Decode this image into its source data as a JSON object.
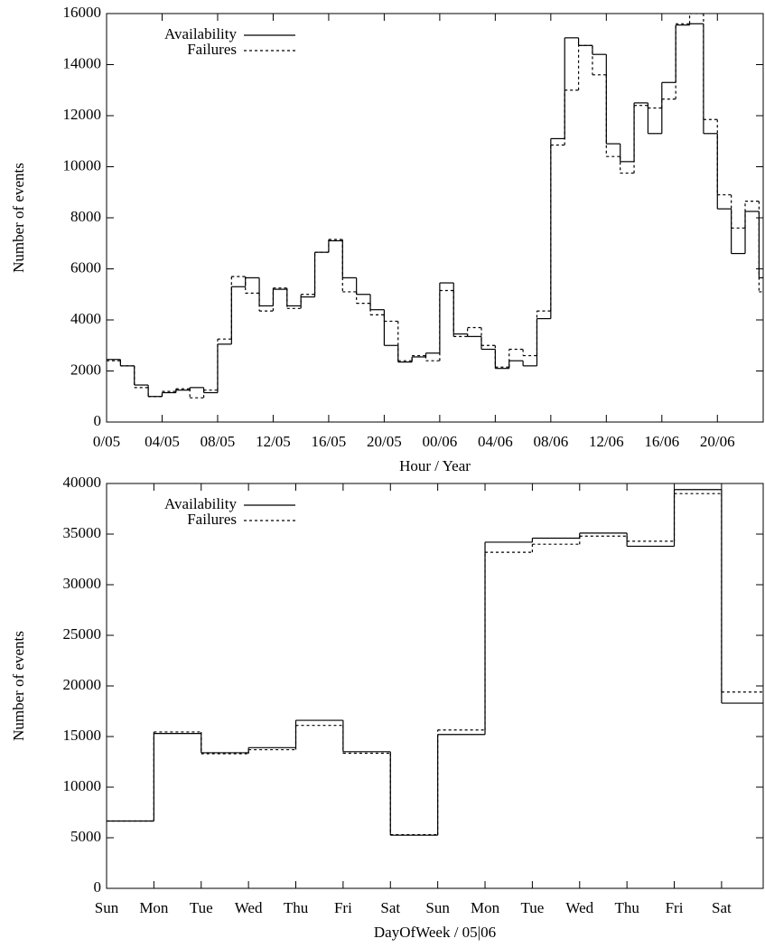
{
  "chart_data": [
    {
      "type": "step",
      "xlabel": "Hour / Year",
      "ylabel": "Number of events",
      "legend": "top-left",
      "grid": false,
      "x": [
        0,
        1,
        2,
        3,
        4,
        5,
        6,
        7,
        8,
        9,
        10,
        11,
        12,
        13,
        14,
        15,
        16,
        17,
        18,
        19,
        20,
        21,
        22,
        23,
        24,
        25,
        26,
        27,
        28,
        29,
        30,
        31,
        32,
        33,
        34,
        35,
        36,
        37,
        38,
        39,
        40,
        41,
        42,
        43,
        44,
        45,
        46,
        47
      ],
      "xlim": [
        0,
        47.3
      ],
      "xticks": [
        {
          "value": 0,
          "label": "0/05"
        },
        {
          "value": 4,
          "label": "04/05"
        },
        {
          "value": 8,
          "label": "08/05"
        },
        {
          "value": 12,
          "label": "12/05"
        },
        {
          "value": 16,
          "label": "16/05"
        },
        {
          "value": 20,
          "label": "20/05"
        },
        {
          "value": 24,
          "label": "00/06"
        },
        {
          "value": 28,
          "label": "04/06"
        },
        {
          "value": 32,
          "label": "08/06"
        },
        {
          "value": 36,
          "label": "12/06"
        },
        {
          "value": 40,
          "label": "16/06"
        },
        {
          "value": 44,
          "label": "20/06"
        }
      ],
      "ylim": [
        0,
        16000
      ],
      "yticks": [
        0,
        2000,
        4000,
        6000,
        8000,
        10000,
        12000,
        14000,
        16000
      ],
      "series": [
        {
          "name": "Availability",
          "color": "#000000",
          "dash": "solid",
          "values": [
            2450,
            2200,
            1450,
            1000,
            1150,
            1250,
            1350,
            1150,
            3050,
            5300,
            5650,
            4550,
            5200,
            4550,
            4900,
            6650,
            7100,
            5650,
            5000,
            4400,
            3000,
            2350,
            2550,
            2700,
            5450,
            3450,
            3350,
            2850,
            2100,
            2400,
            2200,
            4050,
            11100,
            15050,
            14750,
            14400,
            10900,
            10200,
            12500,
            11300,
            13300,
            15550,
            15600,
            11300,
            8350,
            6600,
            8250,
            5650
          ]
        },
        {
          "name": "Failures",
          "color": "#000000",
          "dash": "dashed",
          "values": [
            2400,
            2200,
            1350,
            1000,
            1200,
            1300,
            950,
            1250,
            3250,
            5700,
            5050,
            4350,
            5250,
            4450,
            5000,
            6650,
            7150,
            5100,
            4650,
            4200,
            3950,
            2400,
            2600,
            2400,
            5150,
            3350,
            3700,
            3000,
            2150,
            2850,
            2600,
            4350,
            10850,
            13000,
            14750,
            13600,
            10400,
            9750,
            12400,
            12300,
            12650,
            15600,
            16000,
            11850,
            8900,
            7600,
            8650,
            5100
          ]
        }
      ]
    },
    {
      "type": "step",
      "xlabel": "DayOfWeek / 05|06",
      "ylabel": "Number of events",
      "legend": "top-left",
      "grid": false,
      "x": [
        0,
        1,
        2,
        3,
        4,
        5,
        6,
        7,
        8,
        9,
        10,
        11,
        12,
        13
      ],
      "xlim": [
        0,
        13.88
      ],
      "xticks": [
        {
          "value": 0,
          "label": "Sun"
        },
        {
          "value": 1,
          "label": "Mon"
        },
        {
          "value": 2,
          "label": "Tue"
        },
        {
          "value": 3,
          "label": "Wed"
        },
        {
          "value": 4,
          "label": "Thu"
        },
        {
          "value": 5,
          "label": "Fri"
        },
        {
          "value": 6,
          "label": "Sat"
        },
        {
          "value": 7,
          "label": "Sun"
        },
        {
          "value": 8,
          "label": "Mon"
        },
        {
          "value": 9,
          "label": "Tue"
        },
        {
          "value": 10,
          "label": "Wed"
        },
        {
          "value": 11,
          "label": "Thu"
        },
        {
          "value": 12,
          "label": "Fri"
        },
        {
          "value": 13,
          "label": "Sat"
        }
      ],
      "ylim": [
        0,
        40000
      ],
      "yticks": [
        0,
        5000,
        10000,
        15000,
        20000,
        25000,
        30000,
        35000,
        40000
      ],
      "series": [
        {
          "name": "Availability",
          "color": "#000000",
          "dash": "solid",
          "values": [
            6650,
            15300,
            13400,
            13900,
            16600,
            13500,
            5250,
            15200,
            34200,
            34600,
            35100,
            33800,
            39400,
            18300
          ]
        },
        {
          "name": "Failures",
          "color": "#000000",
          "dash": "dashed",
          "values": [
            6650,
            15450,
            13300,
            13700,
            16100,
            13350,
            5300,
            15650,
            33200,
            34000,
            34800,
            34300,
            39000,
            19400
          ]
        }
      ]
    }
  ]
}
